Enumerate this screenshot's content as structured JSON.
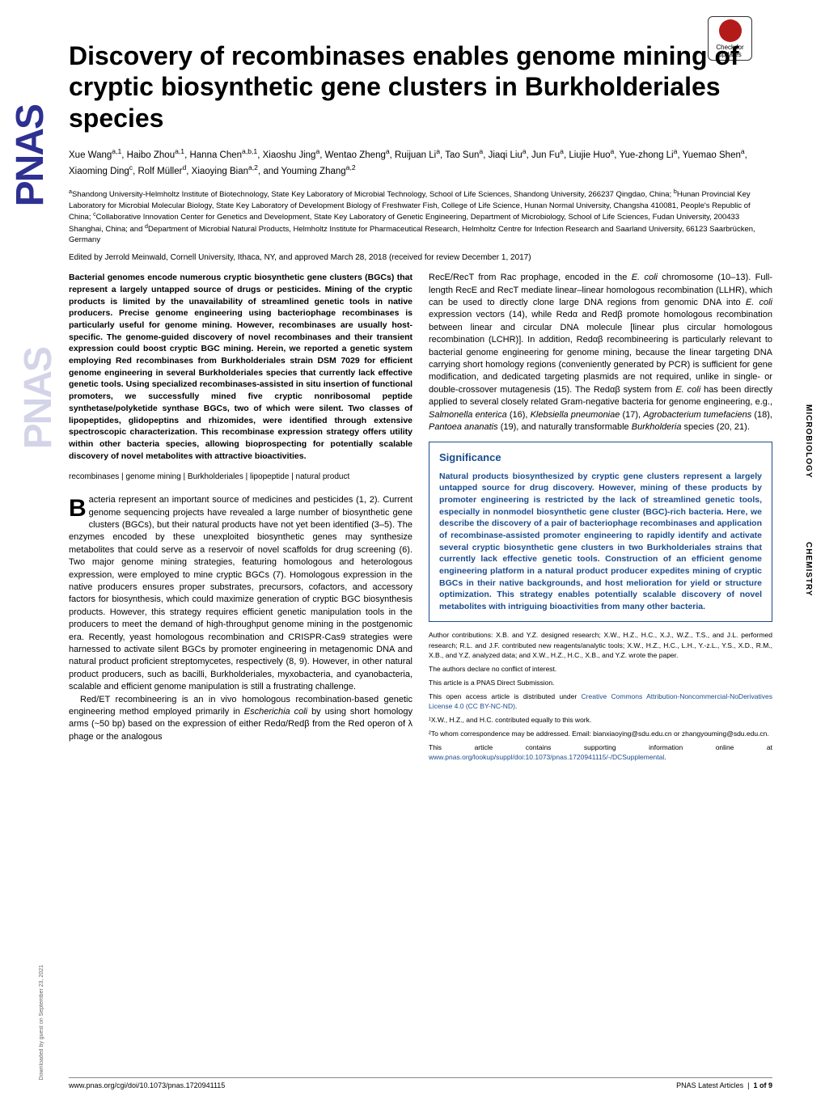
{
  "badge": {
    "line1": "Check for",
    "line2": "updates"
  },
  "logo": "PNAS",
  "side_labels": {
    "microbiology": "MICROBIOLOGY",
    "chemistry": "CHEMISTRY"
  },
  "title": "Discovery of recombinases enables genome mining of cryptic biosynthetic gene clusters in Burkholderiales species",
  "authors_html": "Xue Wang<sup>a,1</sup>, Haibo Zhou<sup>a,1</sup>, Hanna Chen<sup>a,b,1</sup>, Xiaoshu Jing<sup>a</sup>, Wentao Zheng<sup>a</sup>, Ruijuan Li<sup>a</sup>, Tao Sun<sup>a</sup>, Jiaqi Liu<sup>a</sup>, Jun Fu<sup>a</sup>, Liujie Huo<sup>a</sup>, Yue-zhong Li<sup>a</sup>, Yuemao Shen<sup>a</sup>, Xiaoming Ding<sup>c</sup>, Rolf Müller<sup>d</sup>, Xiaoying Bian<sup>a,2</sup>, and Youming Zhang<sup>a,2</sup>",
  "affiliations_html": "<sup>a</sup>Shandong University-Helmholtz Institute of Biotechnology, State Key Laboratory of Microbial Technology, School of Life Sciences, Shandong University, 266237 Qingdao, China; <sup>b</sup>Hunan Provincial Key Laboratory for Microbial Molecular Biology, State Key Laboratory of Development Biology of Freshwater Fish, College of Life Science, Hunan Normal University, Changsha 410081, People's Republic of China; <sup>c</sup>Collaborative Innovation Center for Genetics and Development, State Key Laboratory of Genetic Engineering, Department of Microbiology, School of Life Sciences, Fudan University, 200433 Shanghai, China; and <sup>d</sup>Department of Microbial Natural Products, Helmholtz Institute for Pharmaceutical Research, Helmholtz Centre for Infection Research and Saarland University, 66123 Saarbrücken, Germany",
  "edited": "Edited by Jerrold Meinwald, Cornell University, Ithaca, NY, and approved March 28, 2018 (received for review December 1, 2017)",
  "abstract": "Bacterial genomes encode numerous cryptic biosynthetic gene clusters (BGCs) that represent a largely untapped source of drugs or pesticides. Mining of the cryptic products is limited by the unavailability of streamlined genetic tools in native producers. Precise genome engineering using bacteriophage recombinases is particularly useful for genome mining. However, recombinases are usually host-specific. The genome-guided discovery of novel recombinases and their transient expression could boost cryptic BGC mining. Herein, we reported a genetic system employing Red recombinases from Burkholderiales strain DSM 7029 for efficient genome engineering in several Burkholderiales species that currently lack effective genetic tools. Using specialized recombinases-assisted in situ insertion of functional promoters, we successfully mined five cryptic nonribosomal peptide synthetase/polyketide synthase BGCs, two of which were silent. Two classes of lipopeptides, glidopeptins and rhizomides, were identified through extensive spectroscopic characterization. This recombinase expression strategy offers utility within other bacteria species, allowing bioprospecting for potentially scalable discovery of novel metabolites with attractive bioactivities.",
  "keywords": "recombinases | genome mining | Burkholderiales | lipopeptide | natural product",
  "body_left_p1_html": "<span class=\"dropcap\">B</span>acteria represent an important source of medicines and pesticides (1, 2). Current genome sequencing projects have revealed a large number of biosynthetic gene clusters (BGCs), but their natural products have not yet been identified (3–5). The enzymes encoded by these unexploited biosynthetic genes may synthesize metabolites that could serve as a reservoir of novel scaffolds for drug screening (6). Two major genome mining strategies, featuring homologous and heterologous expression, were employed to mine cryptic BGCs (7). Homologous expression in the native producers ensures proper substrates, precursors, cofactors, and accessory factors for biosynthesis, which could maximize generation of cryptic BGC biosynthesis products. However, this strategy requires efficient genetic manipulation tools in the producers to meet the demand of high-throughput genome mining in the postgenomic era. Recently, yeast homologous recombination and CRISPR-Cas9 strategies were harnessed to activate silent BGCs by promoter engineering in metagenomic DNA and natural product proficient streptomycetes, respectively (8, 9). However, in other natural product producers, such as bacilli, Burkholderiales, myxobacteria, and cyanobacteria, scalable and efficient genome manipulation is still a frustrating challenge.",
  "body_left_p2_html": "Red/ET recombineering is an in vivo homologous recombination-based genetic engineering method employed primarily in <i>Escherichia coli</i> by using short homology arms (~50 bp) based on the expression of either Redα/Redβ from the Red operon of λ phage or the analogous",
  "body_right_html": "RecE/RecT from Rac prophage, encoded in the <i>E. coli</i> chromosome (10–13). Full-length RecE and RecT mediate linear–linear homologous recombination (LLHR), which can be used to directly clone large DNA regions from genomic DNA into <i>E. coli</i> expression vectors (14), while Redα and Redβ promote homologous recombination between linear and circular DNA molecule [linear plus circular homologous recombination (LCHR)]. In addition, Redαβ recombineering is particularly relevant to bacterial genome engineering for genome mining, because the linear targeting DNA carrying short homology regions (conveniently generated by PCR) is sufficient for gene modification, and dedicated targeting plasmids are not required, unlike in single- or double-crossover mutagenesis (15). The Redαβ system from <i>E. coli</i> has been directly applied to several closely related Gram-negative bacteria for genome engineering, e.g., <i>Salmonella enterica</i> (16), <i>Klebsiella pneumoniae</i> (17), <i>Agrobacterium tumefaciens</i> (18), <i>Pantoea ananatis</i> (19), and naturally transformable <i>Burkholderia</i> species (20, 21).",
  "significance": {
    "title": "Significance",
    "text": "Natural products biosynthesized by cryptic gene clusters represent a largely untapped source for drug discovery. However, mining of these products by promoter engineering is restricted by the lack of streamlined genetic tools, especially in nonmodel biosynthetic gene cluster (BGC)-rich bacteria. Here, we describe the discovery of a pair of bacteriophage recombinases and application of recombinase-assisted promoter engineering to rapidly identify and activate several cryptic biosynthetic gene clusters in two Burkholderiales strains that currently lack effective genetic tools. Construction of an efficient genome engineering platform in a natural product producer expedites mining of cryptic BGCs in their native backgrounds, and host melioration for yield or structure optimization. This strategy enables potentially scalable discovery of novel metabolites with intriguing bioactivities from many other bacteria."
  },
  "author_footer": {
    "contributions": "Author contributions: X.B. and Y.Z. designed research; X.W., H.Z., H.C., X.J., W.Z., T.S., and J.L. performed research; R.L. and J.F. contributed new reagents/analytic tools; X.W., H.Z., H.C., L.H., Y.-z.L., Y.S., X.D., R.M., X.B., and Y.Z. analyzed data; and X.W., H.Z., H.C., X.B., and Y.Z. wrote the paper.",
    "conflict": "The authors declare no conflict of interest.",
    "direct": "This article is a PNAS Direct Submission.",
    "license_prefix": "This open access article is distributed under ",
    "license_link": "Creative Commons Attribution-Noncommercial-NoDerivatives License 4.0 (CC BY-NC-ND)",
    "equal": "¹X.W., H.Z., and H.C. contributed equally to this work.",
    "correspondence": "²To whom correspondence may be addressed. Email: bianxiaoying@sdu.edu.cn or zhangyouming@sdu.edu.cn.",
    "supporting_prefix": "This article contains supporting information online at ",
    "supporting_link": "www.pnas.org/lookup/suppl/doi:10.1073/pnas.1720941115/-/DCSupplemental"
  },
  "footer": {
    "left": "www.pnas.org/cgi/doi/10.1073/pnas.1720941115",
    "right_a": "PNAS Latest Articles",
    "right_b": "1 of 9"
  },
  "download_note": "Downloaded by guest on September 23, 2021"
}
